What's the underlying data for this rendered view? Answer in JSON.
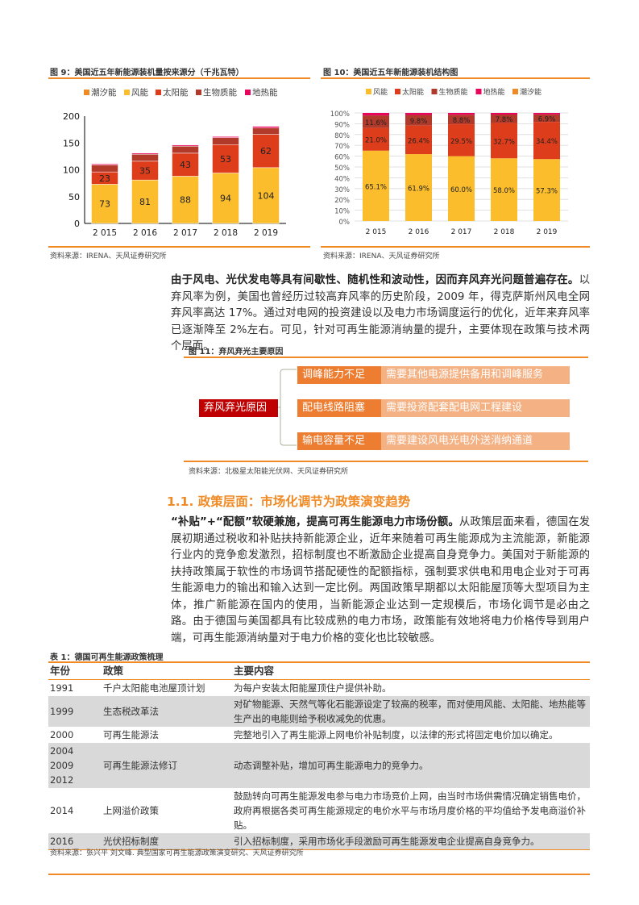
{
  "fig9": {
    "title": "图 9：美国近五年新能源装机量按来源分（千兆瓦特）",
    "source": "资料来源：IRENA、天风证券研究所"
  },
  "fig10": {
    "title": "图 10：美国近五年新能源装机结构图",
    "source": "资料来源：IRENA、天风证券研究所"
  },
  "chart_data": [
    {
      "type": "bar",
      "stacked": true,
      "categories": [
        "2 015",
        "2 016",
        "2 017",
        "2 018",
        "2 019"
      ],
      "ylim": [
        0,
        200
      ],
      "yticks": [
        0,
        50,
        100,
        150,
        200
      ],
      "legend": "top",
      "series": [
        {
          "name": "潮汐能",
          "color": "#f08a24",
          "values": [
            0,
            0,
            0,
            0,
            0
          ],
          "labels": false
        },
        {
          "name": "风能",
          "color": "#fbbd2c",
          "values": [
            73,
            81,
            88,
            94,
            104
          ],
          "labels": true
        },
        {
          "name": "太阳能",
          "color": "#de3d1b",
          "values": [
            23,
            35,
            43,
            53,
            62
          ],
          "labels": true
        },
        {
          "name": "生物质能",
          "color": "#b23a2b",
          "values": [
            13,
            13,
            13,
            13,
            12
          ],
          "labels": false
        },
        {
          "name": "地热能",
          "color": "#e8065d",
          "values": [
            2,
            2,
            2,
            2,
            3
          ],
          "labels": false
        }
      ],
      "legend_order": [
        0,
        1,
        2,
        3,
        4
      ]
    },
    {
      "type": "bar",
      "stacked": true,
      "percent": true,
      "categories": [
        "2 015",
        "2 016",
        "2 017",
        "2 018",
        "2 019"
      ],
      "ylim": [
        0,
        100
      ],
      "yticks": [
        0,
        10,
        20,
        30,
        40,
        50,
        60,
        70,
        80,
        90,
        100
      ],
      "legend": "top",
      "series": [
        {
          "name": "风能",
          "color": "#fbbd2c",
          "values": [
            65.1,
            61.9,
            60.0,
            58.0,
            57.3
          ],
          "labels": true
        },
        {
          "name": "太阳能",
          "color": "#de3d1b",
          "values": [
            21.0,
            26.4,
            29.5,
            32.7,
            34.4
          ],
          "labels": true
        },
        {
          "name": "生物质能",
          "color": "#b23a2b",
          "values": [
            11.6,
            9.8,
            8.8,
            7.8,
            6.9
          ],
          "labels": true
        },
        {
          "name": "地热能",
          "color": "#e8065d",
          "values": [
            2.3,
            1.9,
            1.7,
            1.5,
            1.4
          ],
          "labels": false
        },
        {
          "name": "潮汐能",
          "color": "#f08a24",
          "values": [
            0,
            0,
            0,
            0,
            0
          ],
          "labels": false
        }
      ],
      "legend_order": [
        0,
        1,
        2,
        3,
        4
      ]
    }
  ],
  "para1": {
    "bold": "由于风电、光伏发电等具有间歇性、随机性和波动性，因而弃风弃光问题普遍存在。",
    "text": "以弃风率为例，美国也曾经历过较高弃风率的历史阶段，2009 年，得克萨斯州风电全网弃风率高达 17%。通过对电网的投资建设以及电力市场调度运行的优化，近年来弃风率已逐渐降至 2%左右。可见，针对可再生能源消纳量的提升，主要体现在政策与技术两个层面。"
  },
  "fig11": {
    "title": "图 11：弃风弃光主要原因",
    "root": "弃风弃光原因",
    "items": [
      {
        "cause": "调峰能力不足",
        "need": "需要其他电源提供备用和调峰服务"
      },
      {
        "cause": "配电线路阻塞",
        "need": "需要投资配套配电网工程建设"
      },
      {
        "cause": "输电容量不足",
        "need": "需要建设风电光电外送消纳通道"
      }
    ],
    "source": "资料来源：北极星太阳能光伏网、天风证券研究所"
  },
  "section": {
    "title": "1.1. 政策层面：市场化调节为政策演变趋势"
  },
  "para2": {
    "bold": "“补贴”+“配额”软硬兼施，提高可再生能源电力市场份额。",
    "text": "从政策层面来看，德国在发展初期通过税收和补贴扶持新能源企业，近年来随着可再生能源成为主流能源，新能源行业内的竞争愈发激烈，招标制度也不断激励企业提高自身竞争力。美国对于新能源的扶持政策属于软性的市场调节搭配硬性的配额指标，强制要求供电和用电企业对于可再生能源电力的输出和输入达到一定比例。两国政策早期都以太阳能屋顶等大型项目为主体，推广新能源在国内的使用，当新能源企业达到一定规模后，市场化调节是必由之路。由于德国与美国都具有比较成熟的电力市场，政策能有效地将电力价格传导到用户端，可再生能源消纳量对于电力价格的变化也比较敏感。"
  },
  "table1": {
    "title": "表 1：德国可再生能源政策梳理",
    "headers": [
      "年份",
      "政策",
      "主要内容"
    ],
    "rows": [
      [
        "1991",
        "千户太阳能电池屋顶计划",
        "为每户安装太阳能屋顶住户提供补助。"
      ],
      [
        "1999",
        "生态税改革法",
        "对矿物能源、天然气等化石能源设定了较高的税率，而对使用风能、太阳能、地热能等生产出的电能则给予税收减免的优惠。"
      ],
      [
        "2000",
        "可再生能源法",
        "完整地引入了再生能源上网电价补贴制度，以法律的形式将固定电价加以确定。"
      ],
      [
        "2004\n2009\n2012",
        "可再生能源法修订",
        "动态调整补贴，增加可再生能源电力的竞争力。"
      ],
      [
        "2014",
        "上网溢价政策",
        "鼓励转向可再生能源发电参与电力市场竞价上网，由当时市场供需情况确定销售电价，政府再根据各类可再生能源规定的电价水平与市场月度价格的平均值给予发电商溢价补贴。"
      ],
      [
        "2016",
        "光伏招标制度",
        "引入招标制度，采用市场化手段激励可再生能源发电企业提高自身竞争力。"
      ]
    ],
    "source": "资料来源：张兴平 刘文峰. 典型国家可再生能源政策演变研究、天风证券研究所"
  }
}
